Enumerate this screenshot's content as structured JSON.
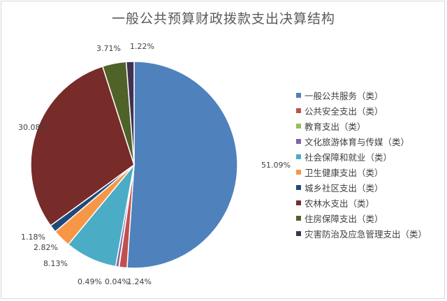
{
  "chart_data": {
    "type": "pie",
    "title": "一般公共预算财政拨款支出决算结构",
    "legend_position": "right",
    "slices": [
      {
        "name": "一般公共服务（类）",
        "value": 51.09,
        "label": "51.09%",
        "color": "#4f81bd"
      },
      {
        "name": "公共安全支出（类）",
        "value": 1.24,
        "label": "1.24%",
        "color": "#c0504d"
      },
      {
        "name": "教育支出（类）",
        "value": 0.04,
        "label": "0.04%",
        "color": "#9bbb59"
      },
      {
        "name": "文化旅游体育与传媒（类）",
        "value": 0.49,
        "label": "0.49%",
        "color": "#8064a2"
      },
      {
        "name": "社会保障和就业（类）",
        "value": 8.13,
        "label": "8.13%",
        "color": "#4bacc6"
      },
      {
        "name": "卫生健康支出（类）",
        "value": 2.82,
        "label": "2.82%",
        "color": "#f79646"
      },
      {
        "name": "城乡社区支出（类）",
        "value": 1.18,
        "label": "1.18%",
        "color": "#1f497d"
      },
      {
        "name": "农林水支出（类）",
        "value": 30.08,
        "label": "30.08%",
        "color": "#772c2a"
      },
      {
        "name": "住房保障支出（类）",
        "value": 3.71,
        "label": "3.71%",
        "color": "#4f6228"
      },
      {
        "name": "灾害防治及应急管理支出（类）",
        "value": 1.22,
        "label": "1.22%",
        "color": "#403152"
      }
    ]
  }
}
